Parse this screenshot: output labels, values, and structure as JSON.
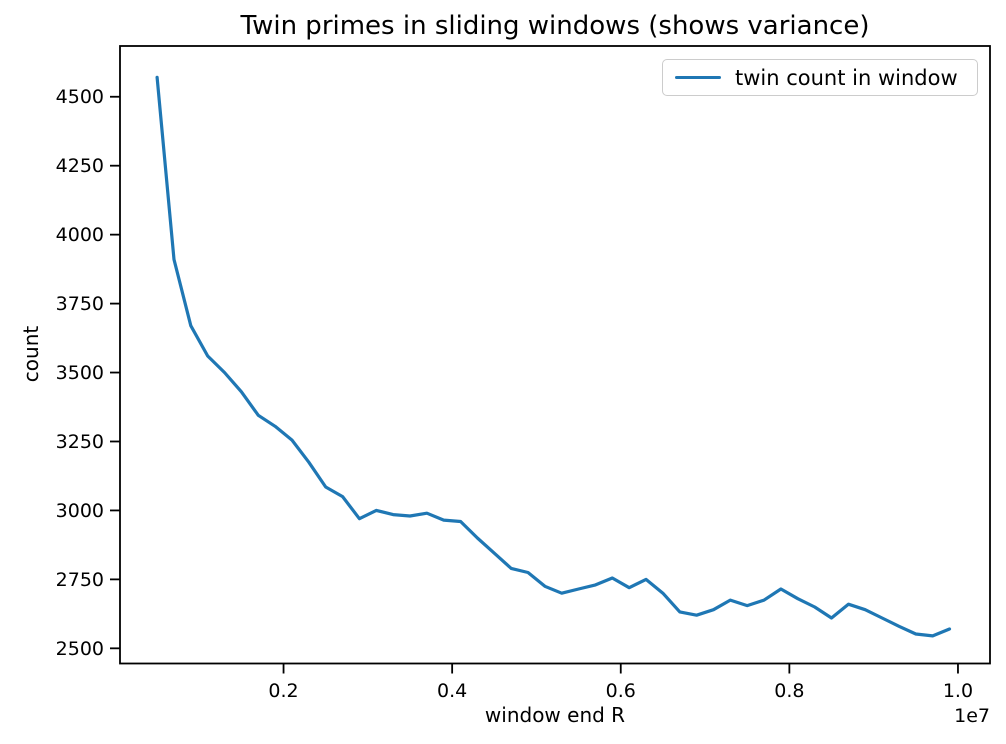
{
  "figure": {
    "background": "#ffffff"
  },
  "chart_data": {
    "type": "line",
    "title": "Twin primes in sliding windows (shows variance)",
    "xlabel": "window end R",
    "ylabel": "count",
    "x_axis_offset_label": "1e7",
    "grid": false,
    "frame_color": "#000000",
    "line_color": "#1f77b4",
    "legend": {
      "position": "upper right",
      "entries": [
        "twin count in window"
      ]
    },
    "xlim": [
      60000,
      10380000
    ],
    "ylim": [
      2445,
      4684
    ],
    "xticks": {
      "values": [
        2000000,
        4000000,
        6000000,
        8000000,
        10000000
      ],
      "labels": [
        "0.2",
        "0.4",
        "0.6",
        "0.8",
        "1.0"
      ]
    },
    "yticks": {
      "values": [
        2500,
        2750,
        3000,
        3250,
        3500,
        3750,
        4000,
        4250,
        4500
      ],
      "labels": [
        "2500",
        "2750",
        "3000",
        "3250",
        "3500",
        "3750",
        "4000",
        "4250",
        "4500"
      ]
    },
    "series": [
      {
        "name": "twin count in window",
        "x": [
          500000,
          700000,
          900000,
          1100000,
          1300000,
          1500000,
          1700000,
          1900000,
          2100000,
          2300000,
          2500000,
          2700000,
          2900000,
          3100000,
          3300000,
          3500000,
          3700000,
          3900000,
          4100000,
          4300000,
          4500000,
          4700000,
          4900000,
          5100000,
          5300000,
          5500000,
          5700000,
          5900000,
          6100000,
          6300000,
          6500000,
          6700000,
          6900000,
          7100000,
          7300000,
          7500000,
          7700000,
          7900000,
          8100000,
          8300000,
          8500000,
          8700000,
          8900000,
          9100000,
          9300000,
          9500000,
          9700000,
          9900000
        ],
        "y": [
          4570,
          3910,
          3670,
          3560,
          3500,
          3430,
          3345,
          3305,
          3255,
          3175,
          3085,
          3050,
          2970,
          3000,
          2985,
          2980,
          2990,
          2965,
          2960,
          2900,
          2845,
          2790,
          2775,
          2725,
          2700,
          2715,
          2730,
          2755,
          2720,
          2750,
          2700,
          2632,
          2620,
          2640,
          2675,
          2655,
          2675,
          2715,
          2680,
          2650,
          2610,
          2660,
          2640,
          2610,
          2580,
          2552,
          2545,
          2570
        ]
      }
    ]
  }
}
